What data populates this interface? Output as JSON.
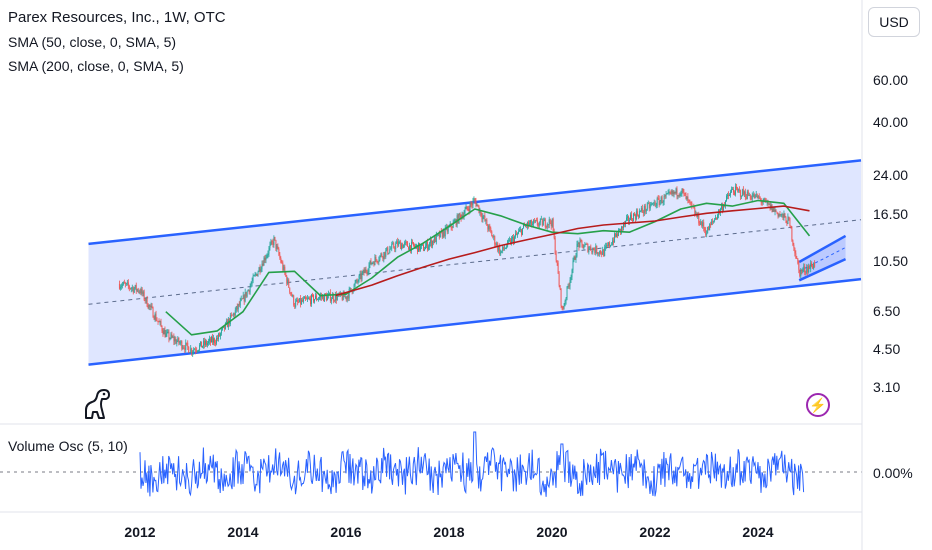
{
  "legend": {
    "title": "Parex Resources, Inc., 1W, OTC",
    "sma50": "SMA (50, close, 0, SMA, 5)",
    "sma200": "SMA (200, close, 0, SMA, 5)",
    "volume": "Volume Osc (5, 10)"
  },
  "currency_button": "USD",
  "icons": {
    "logo": "dinosaur-logo-icon",
    "flash": "lightning-bolt-icon"
  },
  "colors": {
    "channel_fill": "#dbe3ff",
    "channel_line": "#2962ff",
    "sma50": "#26a04a",
    "sma200": "#b71c1c",
    "volume": "#2962ff",
    "up": "#26a69a",
    "down": "#ef5350"
  },
  "chart_data": [
    {
      "type": "candlestick",
      "title": "Parex Resources, Inc., 1W, OTC",
      "y_scale": "log",
      "x_ticks": [
        "2012",
        "2014",
        "2016",
        "2018",
        "2020",
        "2022",
        "2024"
      ],
      "y_ticks": [
        "60.00",
        "40.00",
        "24.00",
        "16.50",
        "10.50",
        "6.50",
        "4.50",
        "3.10"
      ],
      "approx_close": {
        "x": [
          2011.6,
          2012.0,
          2012.5,
          2013.0,
          2013.5,
          2014.0,
          2014.6,
          2015.0,
          2015.5,
          2016.0,
          2016.5,
          2017.0,
          2017.5,
          2018.0,
          2018.5,
          2019.0,
          2019.5,
          2020.0,
          2020.2,
          2020.5,
          2021.0,
          2021.5,
          2022.0,
          2022.5,
          2023.0,
          2023.5,
          2024.0,
          2024.6,
          2024.8,
          2025.1
        ],
        "y": [
          8.5,
          8.0,
          5.2,
          4.5,
          5.0,
          7.3,
          13.0,
          7.0,
          7.5,
          7.5,
          10.5,
          12.5,
          12.0,
          14.5,
          19.0,
          11.5,
          15.0,
          15.5,
          6.5,
          12.5,
          11.5,
          16.0,
          18.5,
          21.0,
          14.0,
          21.0,
          19.5,
          15.5,
          9.5,
          10.3
        ]
      },
      "series": [
        {
          "name": "SMA (50, close, 0, SMA, 5)",
          "x": [
            2012.5,
            2013.0,
            2013.5,
            2014.0,
            2014.5,
            2015.0,
            2015.5,
            2016.0,
            2016.5,
            2017.0,
            2017.5,
            2018.0,
            2018.5,
            2019.0,
            2019.5,
            2020.0,
            2020.5,
            2021.0,
            2021.5,
            2022.0,
            2022.5,
            2023.0,
            2023.5,
            2024.0,
            2024.5,
            2025.0
          ],
          "y": [
            6.5,
            5.2,
            5.4,
            6.5,
            9.5,
            9.6,
            7.6,
            7.7,
            9.0,
            11.0,
            12.6,
            14.8,
            17.5,
            16.4,
            15.0,
            14.0,
            13.8,
            14.2,
            14.0,
            15.5,
            17.5,
            18.5,
            18.0,
            19.0,
            18.5,
            13.5
          ]
        },
        {
          "name": "SMA (200, close, 0, SMA, 5)",
          "x": [
            2015.8,
            2016.5,
            2017.0,
            2017.5,
            2018.0,
            2018.5,
            2019.0,
            2019.5,
            2020.0,
            2020.5,
            2021.0,
            2021.5,
            2022.0,
            2022.5,
            2023.0,
            2023.5,
            2024.0,
            2024.5,
            2025.0
          ],
          "y": [
            7.6,
            8.4,
            9.2,
            10.0,
            10.8,
            11.5,
            12.3,
            13.0,
            13.7,
            14.5,
            15.0,
            15.3,
            15.6,
            16.2,
            16.8,
            17.2,
            17.6,
            18.0,
            17.2
          ]
        }
      ],
      "channel": {
        "lower": [
          [
            2011.0,
            3.9
          ],
          [
            2026.0,
            8.9
          ]
        ],
        "upper": [
          [
            2011.0,
            12.5
          ],
          [
            2026.0,
            28.0
          ]
        ]
      },
      "small_channel": {
        "lower": [
          [
            2024.8,
            8.8
          ],
          [
            2025.7,
            10.8
          ]
        ],
        "upper": [
          [
            2024.8,
            10.5
          ],
          [
            2025.7,
            13.5
          ]
        ]
      }
    },
    {
      "type": "line",
      "title": "Volume Osc (5, 10)",
      "y_ticks": [
        "0.00%"
      ]
    }
  ]
}
